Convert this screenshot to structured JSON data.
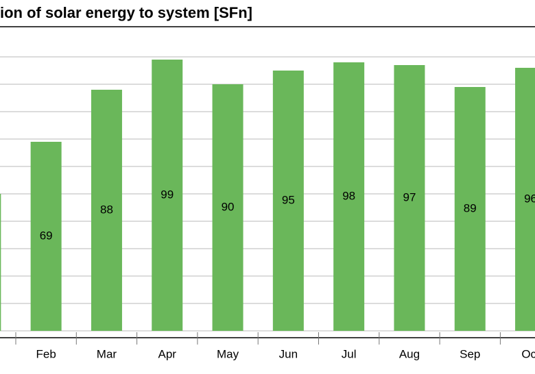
{
  "chart_data": {
    "type": "bar",
    "title": "ion of solar energy to system [SFn]",
    "categories": [
      null,
      "Feb",
      "Mar",
      "Apr",
      "May",
      "Jun",
      "Jul",
      "Aug",
      "Sep",
      "Oct"
    ],
    "values": [
      50,
      69,
      88,
      99,
      90,
      95,
      98,
      97,
      89,
      96
    ],
    "color": "#6ab75a",
    "ylim": [
      0,
      100
    ],
    "yticks": [
      0,
      10,
      20,
      30,
      40,
      50,
      60,
      70,
      80,
      90,
      100
    ],
    "grid": true
  }
}
